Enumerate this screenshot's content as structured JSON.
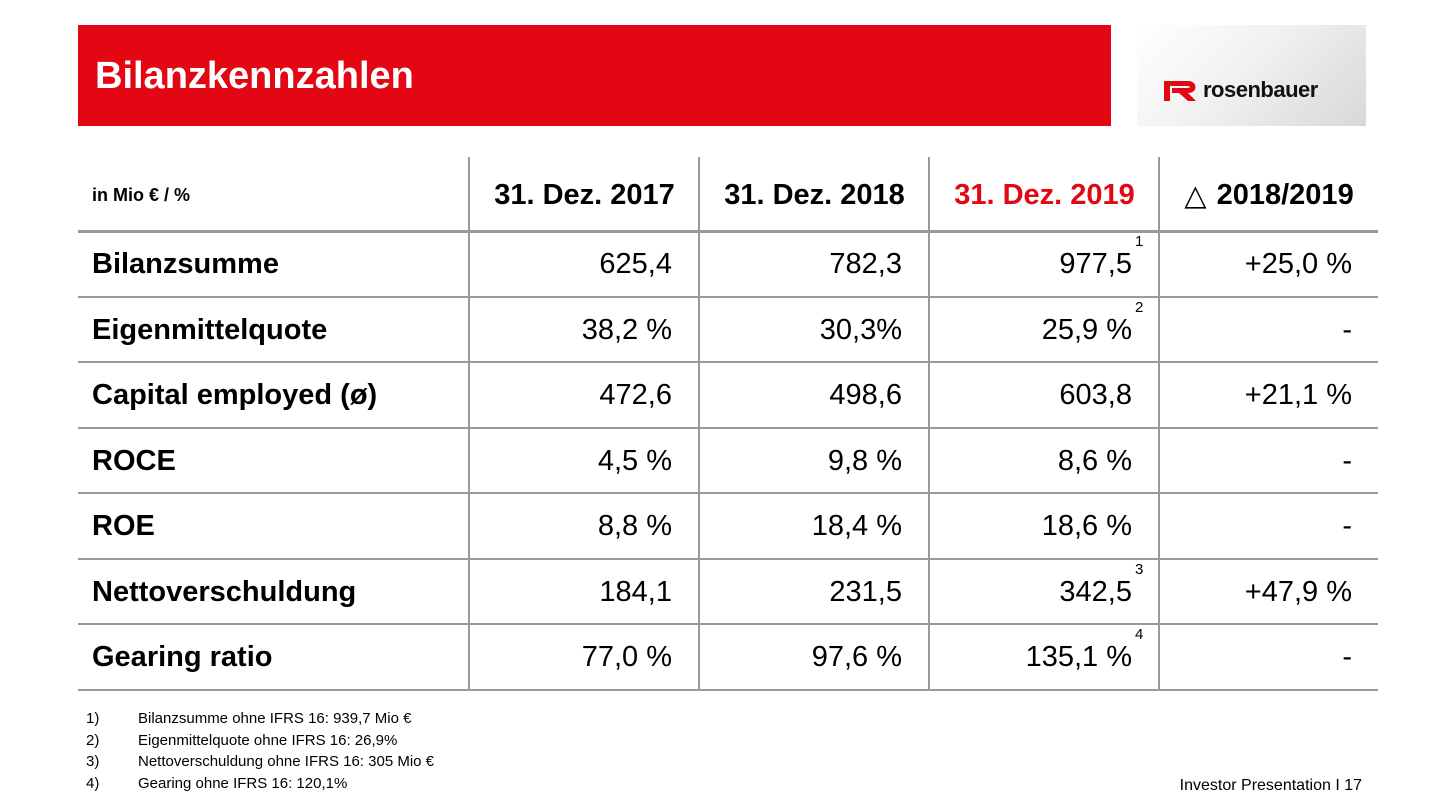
{
  "slide": {
    "title": "Bilanzkennzahlen",
    "footer": "Investor Presentation I 17"
  },
  "logo": {
    "text": "rosenbauer",
    "icon": "rosenbauer-r-logo-icon",
    "brand_color": "#e30613"
  },
  "table": {
    "unit_label": "in Mio € / %",
    "col_headers": [
      "31. Dez. 2017",
      "31. Dez. 2018",
      "31. Dez. 2019",
      "2018/2019"
    ],
    "delta_symbol": "△",
    "highlight_color": "#e30613",
    "rows": [
      {
        "label": "Bilanzsumme",
        "v2017": "625,4",
        "v2018": "782,3",
        "v2019": "977,5",
        "note": "1",
        "delta": "+25,0 %"
      },
      {
        "label": "Eigenmittelquote",
        "v2017": "38,2 %",
        "v2018": "30,3%",
        "v2019": "25,9 %",
        "note": "2",
        "delta": "-"
      },
      {
        "label": "Capital employed (ø)",
        "v2017": "472,6",
        "v2018": "498,6",
        "v2019": "603,8",
        "note": "",
        "delta": "+21,1 %"
      },
      {
        "label": "ROCE",
        "v2017": "4,5 %",
        "v2018": "9,8 %",
        "v2019": "8,6 %",
        "note": "",
        "delta": "-"
      },
      {
        "label": "ROE",
        "v2017": "8,8 %",
        "v2018": "18,4 %",
        "v2019": "18,6 %",
        "note": "",
        "delta": "-"
      },
      {
        "label": "Nettoverschuldung",
        "v2017": "184,1",
        "v2018": "231,5",
        "v2019": "342,5",
        "note": "3",
        "delta": "+47,9 %"
      },
      {
        "label": "Gearing ratio",
        "v2017": "77,0 %",
        "v2018": "97,6 %",
        "v2019": "135,1 %",
        "note": "4",
        "delta": "-"
      }
    ]
  },
  "footnotes": [
    {
      "num": "1)",
      "text": "Bilanzsumme ohne IFRS 16: 939,7 Mio €"
    },
    {
      "num": "2)",
      "text": "Eigenmittelquote ohne IFRS 16: 26,9%"
    },
    {
      "num": "3)",
      "text": "Nettoverschuldung ohne IFRS 16: 305 Mio €"
    },
    {
      "num": "4)",
      "text": "Gearing ohne IFRS 16: 120,1%"
    }
  ]
}
